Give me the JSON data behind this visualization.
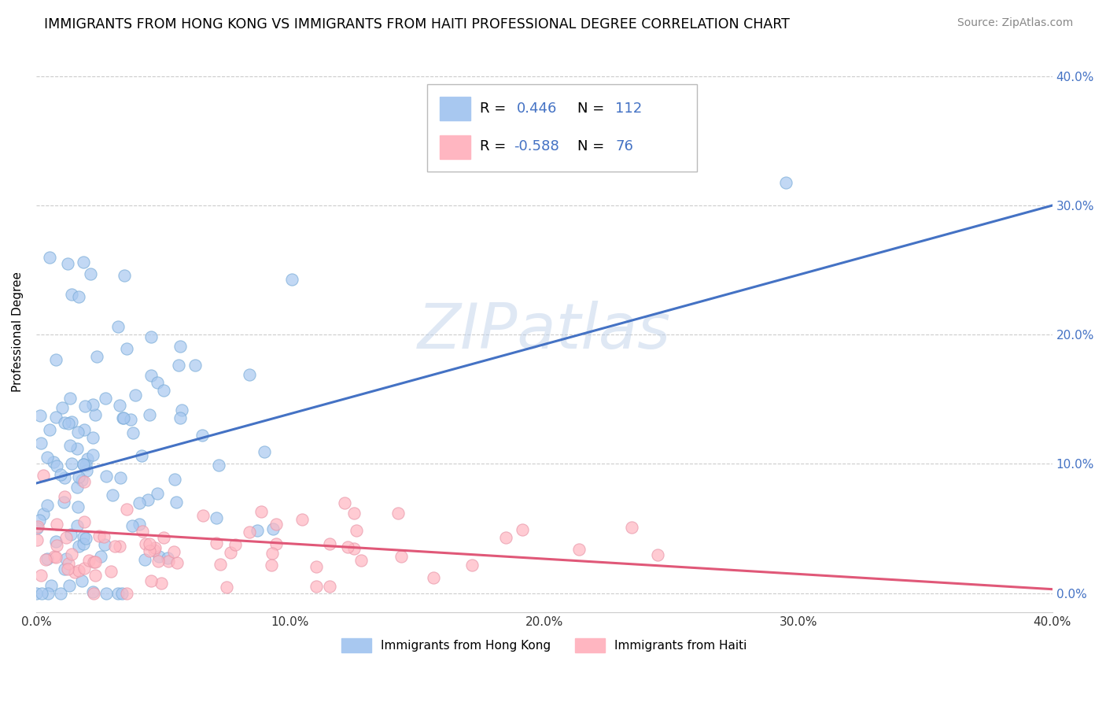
{
  "title": "IMMIGRANTS FROM HONG KONG VS IMMIGRANTS FROM HAITI PROFESSIONAL DEGREE CORRELATION CHART",
  "source": "Source: ZipAtlas.com",
  "ylabel": "Professional Degree",
  "xlim": [
    0.0,
    0.4
  ],
  "ylim": [
    -0.015,
    0.42
  ],
  "x_tick_labels": [
    "0.0%",
    "10.0%",
    "20.0%",
    "30.0%",
    "40.0%"
  ],
  "x_tick_values": [
    0.0,
    0.1,
    0.2,
    0.3,
    0.4
  ],
  "y_tick_labels": [
    "0.0%",
    "10.0%",
    "20.0%",
    "30.0%",
    "40.0%"
  ],
  "y_tick_values": [
    0.0,
    0.1,
    0.2,
    0.3,
    0.4
  ],
  "hk_color": "#a8c8f0",
  "hk_edge_color": "#7aacd8",
  "hk_line_color": "#4472c4",
  "haiti_color": "#ffb6c1",
  "haiti_edge_color": "#e896a8",
  "haiti_line_color": "#e05878",
  "hk_R": 0.446,
  "hk_N": 112,
  "haiti_R": -0.588,
  "haiti_N": 76,
  "hk_line_x0": 0.0,
  "hk_line_y0": 0.085,
  "hk_line_x1": 0.4,
  "hk_line_y1": 0.3,
  "haiti_line_x0": 0.0,
  "haiti_line_y0": 0.05,
  "haiti_line_x1": 0.4,
  "haiti_line_y1": 0.003,
  "legend_label_hk": "Immigrants from Hong Kong",
  "legend_label_haiti": "Immigrants from Haiti",
  "watermark": "ZIPatlas",
  "background_color": "#ffffff",
  "grid_color": "#cccccc",
  "title_fontsize": 12.5,
  "axis_label_fontsize": 11,
  "tick_fontsize": 11,
  "right_tick_color": "#4472c4",
  "legend_text_color": "#4472c4",
  "source_color": "#888888"
}
